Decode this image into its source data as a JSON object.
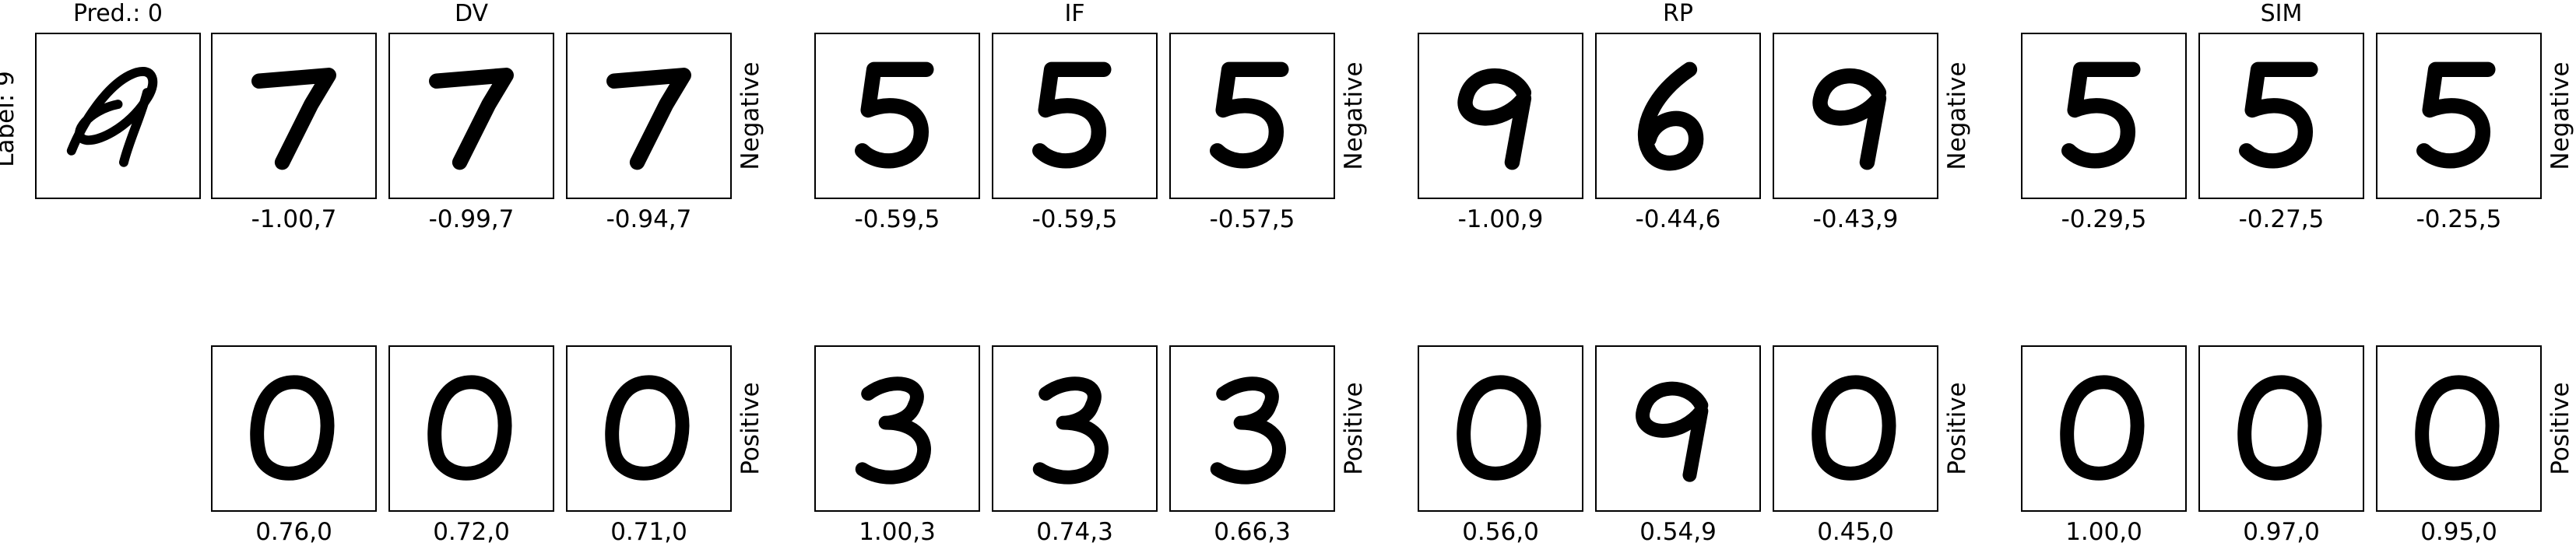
{
  "query": {
    "pred_label": "Pred.: 0",
    "true_label": "Label: 9"
  },
  "row_labels": {
    "negative": "Negative",
    "positive": "Positive"
  },
  "methods": [
    {
      "name": "DV",
      "negative": [
        "-1.00,7",
        "-0.99,7",
        "-0.94,7"
      ],
      "positive": [
        "0.76,0",
        "0.72,0",
        "0.71,0"
      ]
    },
    {
      "name": "IF",
      "negative": [
        "-0.59,5",
        "-0.59,5",
        "-0.57,5"
      ],
      "positive": [
        "1.00,3",
        "0.74,3",
        "0.66,3"
      ]
    },
    {
      "name": "RP",
      "negative": [
        "-1.00,9",
        "-0.44,6",
        "-0.43,9"
      ],
      "positive": [
        "0.56,0",
        "0.54,9",
        "0.45,0"
      ]
    },
    {
      "name": "SIM",
      "negative": [
        "-0.29,5",
        "-0.27,5",
        "-0.25,5"
      ],
      "positive": [
        "1.00,0",
        "0.97,0",
        "0.95,0"
      ]
    }
  ]
}
